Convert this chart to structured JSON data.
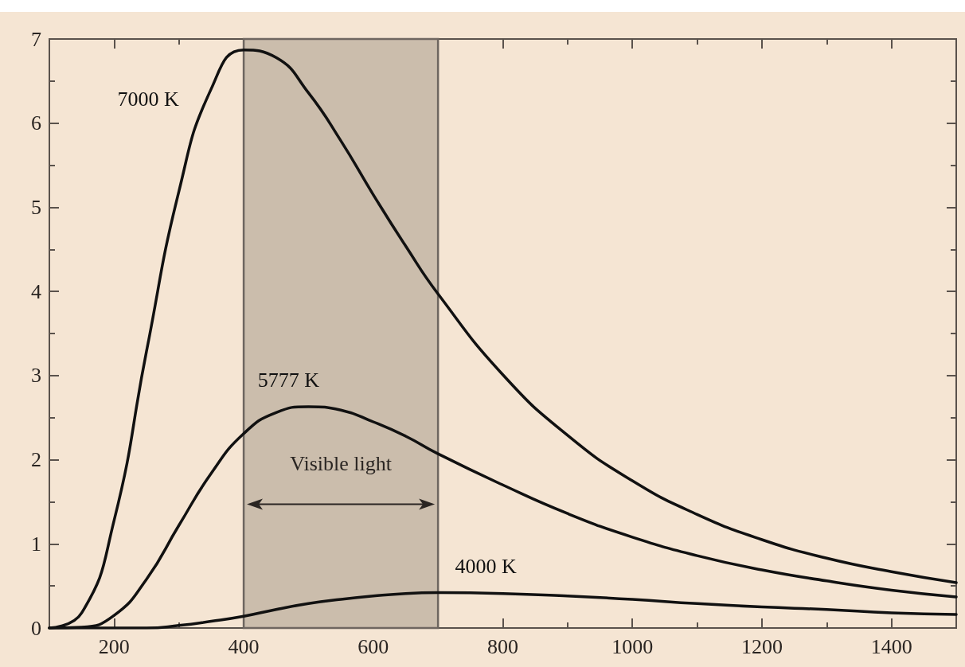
{
  "chart_data": {
    "type": "line",
    "x": [
      100,
      150,
      200,
      250,
      300,
      350,
      400,
      450,
      500,
      550,
      600,
      650,
      700,
      800,
      900,
      1000,
      1100,
      1200,
      1300,
      1400,
      1500
    ],
    "series": [
      {
        "name": "7000 K",
        "color": "#111111",
        "values": [
          0,
          0.18,
          1.28,
          3.29,
          5.19,
          6.41,
          6.87,
          6.78,
          6.36,
          5.79,
          5.15,
          4.54,
          3.97,
          3.01,
          2.29,
          1.75,
          1.35,
          1.05,
          0.83,
          0.67,
          0.54
        ]
      },
      {
        "name": "5777 K",
        "color": "#111111",
        "values": [
          0,
          0.01,
          0.15,
          0.58,
          1.22,
          1.84,
          2.31,
          2.56,
          2.63,
          2.59,
          2.45,
          2.28,
          2.07,
          1.7,
          1.36,
          1.08,
          0.86,
          0.69,
          0.56,
          0.45,
          0.37
        ]
      },
      {
        "name": "4000 K",
        "color": "#111111",
        "values": [
          0,
          0,
          0,
          0,
          0.03,
          0.08,
          0.14,
          0.22,
          0.29,
          0.34,
          0.38,
          0.41,
          0.42,
          0.41,
          0.38,
          0.34,
          0.29,
          0.25,
          0.22,
          0.18,
          0.16
        ]
      }
    ],
    "xlim": [
      100,
      1500
    ],
    "xticks": [
      {
        "value": 100,
        "label": null
      },
      200,
      {
        "value": 300,
        "label": null
      },
      400,
      {
        "value": 500,
        "label": null
      },
      600,
      {
        "value": 700,
        "label": null
      },
      800,
      {
        "value": 900,
        "label": null
      },
      1000,
      {
        "value": 1100,
        "label": null
      },
      1200,
      {
        "value": 1300,
        "label": null
      },
      1400,
      {
        "value": 1500,
        "label": null
      }
    ],
    "ylim": [
      0,
      7
    ],
    "yticks": [
      0,
      {
        "value": 0.5,
        "label": null
      },
      1,
      {
        "value": 1.5,
        "label": null
      },
      2,
      {
        "value": 2.5,
        "label": null
      },
      3,
      {
        "value": 3.5,
        "label": null
      },
      4,
      {
        "value": 4.5,
        "label": null
      },
      5,
      {
        "value": 5.5,
        "label": null
      },
      6,
      {
        "value": 6.5,
        "label": null
      },
      7
    ],
    "bands": [
      {
        "axis": "x",
        "from": 400,
        "to": 700,
        "label": "Visible light",
        "color": "#cbbdac"
      }
    ],
    "grid": false,
    "legend": false,
    "marker": "none",
    "line_style": "solid"
  }
}
